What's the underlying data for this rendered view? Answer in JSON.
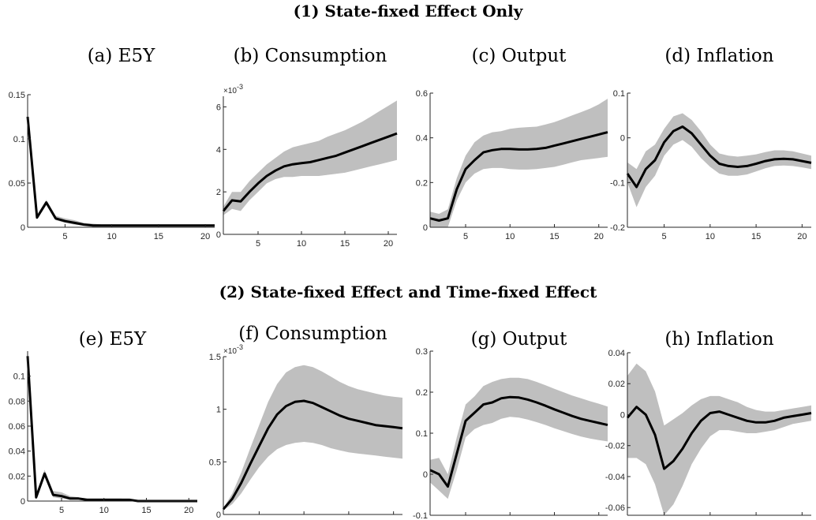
{
  "headings": {
    "row1": "(1) State-fixed Effect Only",
    "row2": "(2) State-fixed Effect and Time-fixed Effect"
  },
  "colors": {
    "line": "#000000",
    "band": "#bfbfbf",
    "axis": "#262626"
  },
  "chart_data": [
    {
      "type": "line",
      "title": "(a) E5Y",
      "xlabel": "",
      "ylabel": "",
      "xlim": [
        1,
        21
      ],
      "ylim": [
        0,
        0.15
      ],
      "xticks": [
        5,
        10,
        15,
        20
      ],
      "yticks": [
        0,
        0.05,
        0.1,
        0.15
      ],
      "ytick_labels": [
        "0",
        "0.05",
        "0.1",
        "0.15"
      ],
      "exponent_label": "",
      "x": [
        1,
        2,
        3,
        4,
        5,
        6,
        7,
        8,
        9,
        10,
        11,
        12,
        13,
        14,
        15,
        16,
        17,
        18,
        19,
        20,
        21
      ],
      "series": [
        {
          "values": [
            0.125,
            0.011,
            0.028,
            0.01,
            0.007,
            0.005,
            0.003,
            0.002,
            0.002,
            0.002,
            0.002,
            0.002,
            0.002,
            0.002,
            0.002,
            0.002,
            0.002,
            0.002,
            0.002,
            0.002,
            0.002
          ]
        }
      ],
      "band_lower": [
        0.124,
        0.009,
        0.025,
        0.008,
        0.005,
        0.003,
        0.002,
        0.001,
        0.001,
        0.001,
        0.001,
        0.001,
        0.001,
        0.001,
        0.001,
        0.001,
        0.001,
        0.001,
        0.001,
        0.001,
        0.001
      ],
      "band_upper": [
        0.126,
        0.014,
        0.031,
        0.013,
        0.01,
        0.008,
        0.005,
        0.004,
        0.003,
        0.003,
        0.003,
        0.003,
        0.003,
        0.003,
        0.003,
        0.003,
        0.003,
        0.003,
        0.003,
        0.003,
        0.003
      ]
    },
    {
      "type": "line",
      "title": "(b) Consumption",
      "xlabel": "",
      "ylabel": "",
      "xlim": [
        1,
        21
      ],
      "ylim": [
        0,
        6.5
      ],
      "xticks": [
        5,
        10,
        15,
        20
      ],
      "yticks": [
        0,
        2,
        4,
        6
      ],
      "ytick_labels": [
        "0",
        "2",
        "4",
        "6"
      ],
      "exponent_label": "×10",
      "exponent_power": "-3",
      "x": [
        1,
        2,
        3,
        4,
        5,
        6,
        7,
        8,
        9,
        10,
        11,
        12,
        13,
        14,
        15,
        16,
        17,
        18,
        19,
        20,
        21
      ],
      "series": [
        {
          "values": [
            1.1,
            1.6,
            1.55,
            2.0,
            2.4,
            2.75,
            3.0,
            3.2,
            3.3,
            3.35,
            3.4,
            3.5,
            3.6,
            3.7,
            3.85,
            4.0,
            4.15,
            4.3,
            4.45,
            4.6,
            4.75
          ]
        }
      ],
      "band_lower": [
        0.9,
        1.2,
        1.1,
        1.6,
        2.0,
        2.4,
        2.6,
        2.7,
        2.7,
        2.75,
        2.75,
        2.75,
        2.8,
        2.85,
        2.9,
        3.0,
        3.1,
        3.2,
        3.3,
        3.4,
        3.5
      ],
      "band_upper": [
        1.3,
        2.0,
        2.0,
        2.5,
        2.9,
        3.3,
        3.6,
        3.9,
        4.1,
        4.2,
        4.3,
        4.4,
        4.6,
        4.75,
        4.9,
        5.1,
        5.3,
        5.55,
        5.8,
        6.05,
        6.3
      ]
    },
    {
      "type": "line",
      "title": "(c) Output",
      "xlabel": "",
      "ylabel": "",
      "xlim": [
        1,
        21
      ],
      "ylim": [
        0,
        0.6
      ],
      "xticks": [
        5,
        10,
        15,
        20
      ],
      "yticks": [
        0,
        0.2,
        0.4,
        0.6
      ],
      "ytick_labels": [
        "0",
        "0.2",
        "0.4",
        "0.6"
      ],
      "exponent_label": "",
      "x": [
        1,
        2,
        3,
        4,
        5,
        6,
        7,
        8,
        9,
        10,
        11,
        12,
        13,
        14,
        15,
        16,
        17,
        18,
        19,
        20,
        21
      ],
      "series": [
        {
          "values": [
            0.04,
            0.03,
            0.04,
            0.17,
            0.26,
            0.3,
            0.335,
            0.345,
            0.35,
            0.35,
            0.348,
            0.348,
            0.35,
            0.355,
            0.365,
            0.375,
            0.385,
            0.395,
            0.405,
            0.415,
            0.425
          ]
        }
      ],
      "band_lower": [
        0.0,
        0.0,
        0.0,
        0.12,
        0.2,
        0.24,
        0.26,
        0.265,
        0.265,
        0.26,
        0.258,
        0.258,
        0.26,
        0.265,
        0.27,
        0.28,
        0.29,
        0.3,
        0.305,
        0.31,
        0.315
      ],
      "band_upper": [
        0.07,
        0.06,
        0.08,
        0.22,
        0.32,
        0.38,
        0.41,
        0.425,
        0.43,
        0.44,
        0.445,
        0.448,
        0.45,
        0.46,
        0.47,
        0.485,
        0.5,
        0.515,
        0.53,
        0.55,
        0.575
      ]
    },
    {
      "type": "line",
      "title": "(d) Inflation",
      "xlabel": "",
      "ylabel": "",
      "xlim": [
        1,
        21
      ],
      "ylim": [
        -0.2,
        0.1
      ],
      "xticks": [
        5,
        10,
        15,
        20
      ],
      "yticks": [
        -0.2,
        -0.1,
        0,
        0.1
      ],
      "ytick_labels": [
        "-0.2",
        "-0.1",
        "0",
        "0.1"
      ],
      "exponent_label": "",
      "x": [
        1,
        2,
        3,
        4,
        5,
        6,
        7,
        8,
        9,
        10,
        11,
        12,
        13,
        14,
        15,
        16,
        17,
        18,
        19,
        20,
        21
      ],
      "series": [
        {
          "values": [
            -0.08,
            -0.11,
            -0.07,
            -0.05,
            -0.01,
            0.015,
            0.025,
            0.01,
            -0.015,
            -0.04,
            -0.058,
            -0.063,
            -0.065,
            -0.063,
            -0.058,
            -0.052,
            -0.048,
            -0.047,
            -0.048,
            -0.052,
            -0.056
          ]
        }
      ],
      "band_lower": [
        -0.1,
        -0.155,
        -0.11,
        -0.085,
        -0.04,
        -0.015,
        -0.005,
        -0.02,
        -0.045,
        -0.065,
        -0.08,
        -0.085,
        -0.085,
        -0.082,
        -0.075,
        -0.068,
        -0.063,
        -0.062,
        -0.063,
        -0.066,
        -0.07
      ],
      "band_upper": [
        -0.055,
        -0.07,
        -0.03,
        -0.015,
        0.02,
        0.048,
        0.055,
        0.04,
        0.015,
        -0.015,
        -0.035,
        -0.04,
        -0.042,
        -0.04,
        -0.037,
        -0.032,
        -0.028,
        -0.028,
        -0.03,
        -0.035,
        -0.04
      ]
    },
    {
      "type": "line",
      "title": "(e) E5Y",
      "xlabel": "",
      "ylabel": "",
      "xlim": [
        1,
        21
      ],
      "ylim": [
        0,
        0.12
      ],
      "xticks": [
        5,
        10,
        15,
        20
      ],
      "yticks": [
        0,
        0.02,
        0.04,
        0.06,
        0.08,
        0.1
      ],
      "ytick_labels": [
        "0",
        "0.02",
        "0.04",
        "0.06",
        "0.08",
        "0.1"
      ],
      "exponent_label": "",
      "x": [
        1,
        2,
        3,
        4,
        5,
        6,
        7,
        8,
        9,
        10,
        11,
        12,
        13,
        14,
        15,
        16,
        17,
        18,
        19,
        20,
        21
      ],
      "series": [
        {
          "values": [
            0.116,
            0.003,
            0.022,
            0.005,
            0.004,
            0.002,
            0.002,
            0.001,
            0.001,
            0.001,
            0.001,
            0.001,
            0.001,
            0.0,
            0.0,
            0.0,
            0.0,
            0.0,
            0.0,
            0.0,
            0.0
          ]
        }
      ],
      "band_lower": [
        0.115,
        0.001,
        0.019,
        0.003,
        0.002,
        0.001,
        0.001,
        0.0,
        0.0,
        0.0,
        0.0,
        0.0,
        0.0,
        0.0,
        0.0,
        0.0,
        0.0,
        0.0,
        0.0,
        0.0,
        0.0
      ],
      "band_upper": [
        0.117,
        0.006,
        0.025,
        0.008,
        0.007,
        0.004,
        0.003,
        0.002,
        0.002,
        0.002,
        0.002,
        0.002,
        0.001,
        0.001,
        0.001,
        0.001,
        0.001,
        0.001,
        0.001,
        0.001,
        0.001
      ]
    },
    {
      "type": "line",
      "title": "(f) Consumption",
      "xlabel": "",
      "ylabel": "",
      "xlim": [
        1,
        21
      ],
      "ylim": [
        0,
        1.5
      ],
      "xticks": [
        5,
        10,
        15,
        20
      ],
      "yticks": [
        0,
        0.5,
        1,
        1.5
      ],
      "ytick_labels": [
        "0",
        "0.5",
        "1",
        "1.5"
      ],
      "exponent_label": "×10",
      "exponent_power": "-3",
      "x": [
        1,
        2,
        3,
        4,
        5,
        6,
        7,
        8,
        9,
        10,
        11,
        12,
        13,
        14,
        15,
        16,
        17,
        18,
        19,
        20,
        21
      ],
      "series": [
        {
          "values": [
            0.05,
            0.15,
            0.3,
            0.48,
            0.65,
            0.82,
            0.95,
            1.03,
            1.07,
            1.08,
            1.06,
            1.02,
            0.98,
            0.94,
            0.91,
            0.89,
            0.87,
            0.85,
            0.84,
            0.83,
            0.82
          ]
        }
      ],
      "band_lower": [
        0.04,
        0.1,
        0.2,
        0.33,
        0.45,
        0.55,
        0.62,
        0.66,
        0.68,
        0.69,
        0.68,
        0.66,
        0.63,
        0.61,
        0.59,
        0.58,
        0.57,
        0.56,
        0.55,
        0.54,
        0.53
      ],
      "band_upper": [
        0.06,
        0.2,
        0.4,
        0.63,
        0.85,
        1.07,
        1.24,
        1.35,
        1.4,
        1.42,
        1.4,
        1.36,
        1.31,
        1.26,
        1.22,
        1.19,
        1.17,
        1.15,
        1.13,
        1.12,
        1.11
      ]
    },
    {
      "type": "line",
      "title": "(g) Output",
      "xlabel": "",
      "ylabel": "",
      "xlim": [
        1,
        21
      ],
      "ylim": [
        -0.1,
        0.3
      ],
      "xticks": [
        5,
        10,
        15,
        20
      ],
      "yticks": [
        -0.1,
        0,
        0.1,
        0.2,
        0.3
      ],
      "ytick_labels": [
        "-0.1",
        "0",
        "0.1",
        "0.2",
        "0.3"
      ],
      "exponent_label": "",
      "x": [
        1,
        2,
        3,
        4,
        5,
        6,
        7,
        8,
        9,
        10,
        11,
        12,
        13,
        14,
        15,
        16,
        17,
        18,
        19,
        20,
        21
      ],
      "series": [
        {
          "values": [
            0.01,
            0.0,
            -0.03,
            0.05,
            0.13,
            0.15,
            0.17,
            0.175,
            0.185,
            0.188,
            0.187,
            0.182,
            0.175,
            0.167,
            0.158,
            0.15,
            0.142,
            0.135,
            0.13,
            0.125,
            0.12
          ]
        }
      ],
      "band_lower": [
        -0.02,
        -0.04,
        -0.06,
        0.01,
        0.09,
        0.11,
        0.12,
        0.125,
        0.135,
        0.14,
        0.138,
        0.133,
        0.127,
        0.12,
        0.112,
        0.105,
        0.098,
        0.092,
        0.087,
        0.083,
        0.08
      ],
      "band_upper": [
        0.035,
        0.04,
        0.0,
        0.09,
        0.17,
        0.19,
        0.215,
        0.225,
        0.232,
        0.235,
        0.235,
        0.232,
        0.225,
        0.217,
        0.208,
        0.2,
        0.192,
        0.185,
        0.178,
        0.172,
        0.165
      ]
    },
    {
      "type": "line",
      "title": "(h) Inflation",
      "xlabel": "",
      "ylabel": "",
      "xlim": [
        1,
        21
      ],
      "ylim": [
        -0.065,
        0.04
      ],
      "xticks": [
        5,
        10,
        15,
        20
      ],
      "yticks": [
        -0.06,
        -0.04,
        -0.02,
        0,
        0.02,
        0.04
      ],
      "ytick_labels": [
        "-0.06",
        "-0.04",
        "-0.02",
        "0",
        "0.02",
        "0.04"
      ],
      "exponent_label": "",
      "x": [
        1,
        2,
        3,
        4,
        5,
        6,
        7,
        8,
        9,
        10,
        11,
        12,
        13,
        14,
        15,
        16,
        17,
        18,
        19,
        20,
        21
      ],
      "series": [
        {
          "values": [
            -0.002,
            0.005,
            0.0,
            -0.013,
            -0.035,
            -0.03,
            -0.022,
            -0.012,
            -0.004,
            0.001,
            0.002,
            0.0,
            -0.002,
            -0.004,
            -0.005,
            -0.005,
            -0.004,
            -0.002,
            -0.001,
            0.0,
            0.001
          ]
        }
      ],
      "band_lower": [
        -0.028,
        -0.028,
        -0.032,
        -0.045,
        -0.065,
        -0.058,
        -0.046,
        -0.032,
        -0.022,
        -0.014,
        -0.01,
        -0.01,
        -0.011,
        -0.012,
        -0.012,
        -0.011,
        -0.01,
        -0.008,
        -0.006,
        -0.005,
        -0.004
      ],
      "band_upper": [
        0.025,
        0.033,
        0.028,
        0.015,
        -0.007,
        -0.003,
        0.001,
        0.006,
        0.01,
        0.012,
        0.012,
        0.01,
        0.008,
        0.005,
        0.003,
        0.002,
        0.002,
        0.003,
        0.004,
        0.005,
        0.006
      ]
    }
  ]
}
